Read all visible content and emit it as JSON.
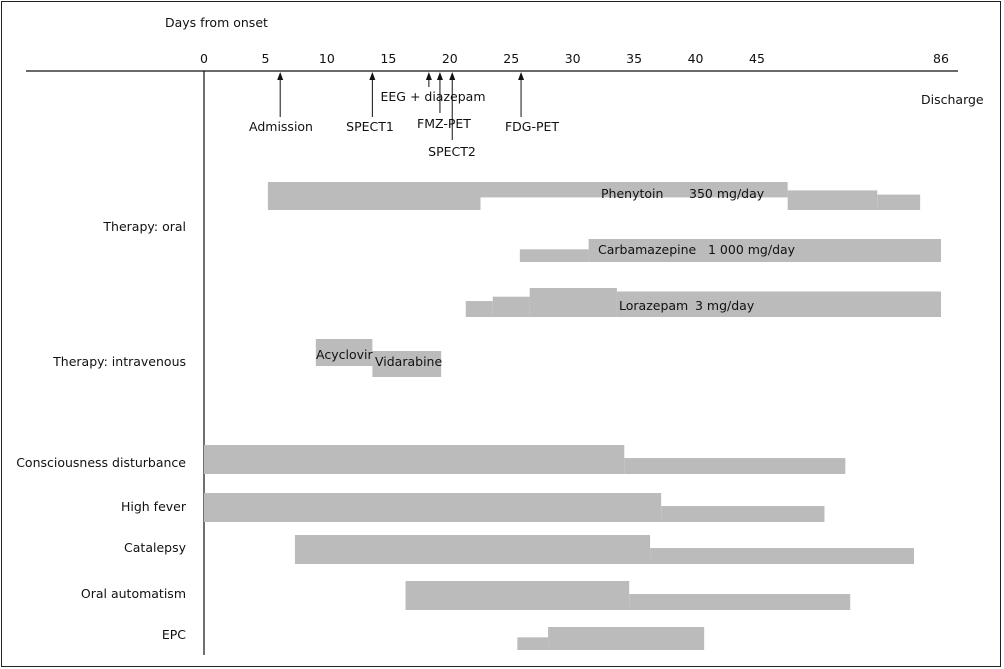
{
  "chart_data": {
    "type": "timeline",
    "title": "",
    "axis": {
      "label": "Days from onset",
      "ticks": [
        "0",
        "5",
        "10",
        "15",
        "20",
        "25",
        "30",
        "35",
        "40",
        "45",
        "86"
      ],
      "tick_days": [
        0,
        5,
        10,
        15,
        20,
        25,
        30,
        35,
        40,
        45,
        86
      ],
      "end_label": "Discharge"
    },
    "events": [
      {
        "name": "Admission",
        "day": 6.2
      },
      {
        "name": "SPECT1",
        "day": 13.7
      },
      {
        "name": "EEG + diazepam",
        "day": 18.3
      },
      {
        "name": "FMZ-PET",
        "day": 19.2
      },
      {
        "name": "SPECT2",
        "day": 20.2
      },
      {
        "name": "FDG-PET",
        "day": 25.8
      }
    ],
    "groups": [
      {
        "label": "Therapy: oral"
      },
      {
        "label": "Therapy: intravenous"
      },
      {
        "label": "Consciousness disturbance"
      },
      {
        "label": "High fever"
      },
      {
        "label": "Catalepsy"
      },
      {
        "label": "Oral automatism"
      },
      {
        "label": "EPC"
      }
    ],
    "bars": [
      {
        "name": "Phenytoin",
        "dose": "350 mg/day",
        "segments": [
          [
            5.2,
            22.5,
            "full"
          ],
          [
            22.5,
            47.5,
            "full_top"
          ],
          [
            47.5,
            54.8,
            "mid"
          ],
          [
            54.8,
            58.3,
            "low"
          ]
        ]
      },
      {
        "name": "Carbamazepine",
        "dose": "1 000 mg/day",
        "segments": [
          [
            25.7,
            31.3,
            "low"
          ],
          [
            31.3,
            60.0,
            "full"
          ]
        ]
      },
      {
        "name": "Lorazepam",
        "dose": "3 mg/day",
        "segments": [
          [
            21.3,
            23.5,
            "low"
          ],
          [
            23.5,
            26.5,
            "mid"
          ],
          [
            26.5,
            33.6,
            "full"
          ],
          [
            33.6,
            60.0,
            "lowfull"
          ]
        ]
      },
      {
        "name": "Acyclovir",
        "segments": [
          [
            9.1,
            13.7,
            "top"
          ]
        ]
      },
      {
        "name": "Vidarabine",
        "segments": [
          [
            13.7,
            19.3,
            "bottom"
          ]
        ]
      },
      {
        "name": "Consciousness disturbance",
        "segments": [
          [
            0,
            34.2,
            "full"
          ],
          [
            34.2,
            52.2,
            "low"
          ]
        ]
      },
      {
        "name": "High fever",
        "segments": [
          [
            0,
            37.2,
            "full"
          ],
          [
            37.2,
            50.5,
            "low"
          ]
        ]
      },
      {
        "name": "Catalepsy",
        "segments": [
          [
            7.4,
            36.3,
            "full"
          ],
          [
            36.3,
            57.8,
            "low"
          ]
        ]
      },
      {
        "name": "Oral automatism",
        "segments": [
          [
            16.4,
            34.6,
            "full"
          ],
          [
            34.6,
            52.6,
            "low"
          ]
        ]
      },
      {
        "name": "EPC",
        "segments": [
          [
            25.5,
            28.0,
            "low"
          ],
          [
            28.0,
            40.7,
            "full"
          ]
        ]
      }
    ],
    "bar_color": "#bbbbbb"
  }
}
